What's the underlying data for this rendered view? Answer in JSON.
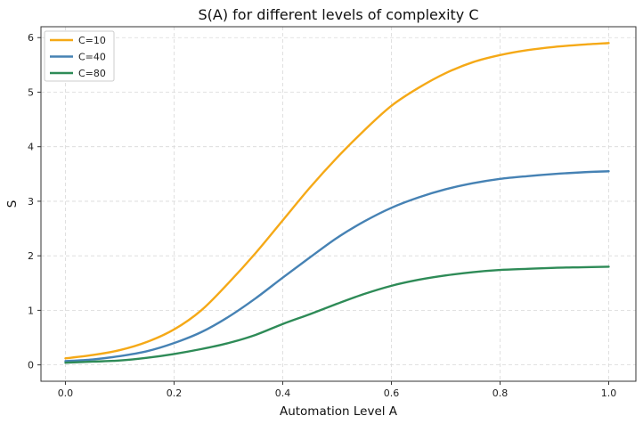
{
  "chart_data": {
    "type": "line",
    "title": "S(A) for different levels of complexity C",
    "xlabel": "Automation Level A",
    "ylabel": "S",
    "xlim": [
      -0.045,
      1.05
    ],
    "ylim": [
      -0.3,
      6.2
    ],
    "xticks": [
      0.0,
      0.2,
      0.4,
      0.6,
      0.8,
      1.0
    ],
    "xtick_labels": [
      "0.0",
      "0.2",
      "0.4",
      "0.6",
      "0.8",
      "1.0"
    ],
    "yticks": [
      0,
      1,
      2,
      3,
      4,
      5,
      6
    ],
    "ytick_labels": [
      "0",
      "1",
      "2",
      "3",
      "4",
      "5",
      "6"
    ],
    "grid": true,
    "legend_position": "top-left",
    "x": [
      0.0,
      0.05,
      0.1,
      0.15,
      0.2,
      0.25,
      0.3,
      0.35,
      0.4,
      0.45,
      0.5,
      0.55,
      0.6,
      0.65,
      0.7,
      0.75,
      0.8,
      0.85,
      0.9,
      0.95,
      1.0
    ],
    "series": [
      {
        "name": "C=10",
        "color": "#f5a917",
        "values": [
          0.12,
          0.18,
          0.27,
          0.42,
          0.65,
          1.0,
          1.5,
          2.05,
          2.65,
          3.25,
          3.8,
          4.3,
          4.75,
          5.08,
          5.35,
          5.55,
          5.68,
          5.77,
          5.83,
          5.87,
          5.9
        ]
      },
      {
        "name": "C=40",
        "color": "#4682b4",
        "values": [
          0.07,
          0.1,
          0.16,
          0.25,
          0.4,
          0.6,
          0.88,
          1.22,
          1.6,
          1.97,
          2.33,
          2.63,
          2.88,
          3.07,
          3.22,
          3.33,
          3.41,
          3.46,
          3.5,
          3.53,
          3.55
        ]
      },
      {
        "name": "C=80",
        "color": "#2e8b57",
        "values": [
          0.04,
          0.06,
          0.08,
          0.13,
          0.2,
          0.29,
          0.4,
          0.55,
          0.75,
          0.93,
          1.12,
          1.3,
          1.45,
          1.56,
          1.64,
          1.7,
          1.74,
          1.76,
          1.78,
          1.79,
          1.8
        ]
      }
    ]
  }
}
